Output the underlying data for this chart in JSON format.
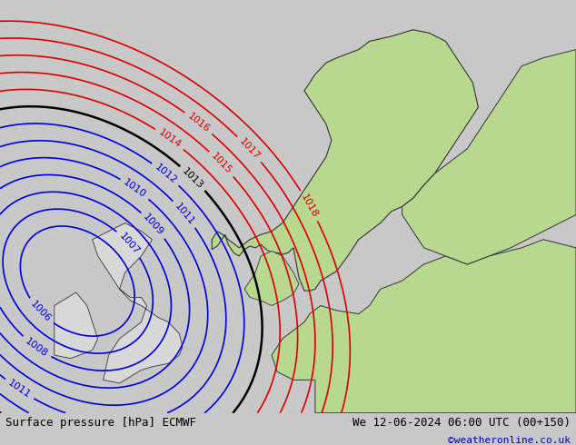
{
  "title_left": "Surface pressure [hPa] ECMWF",
  "title_right": "We 12-06-2024 06:00 UTC (00+150)",
  "credit": "©weatheronline.co.uk",
  "bg_color": "#c8c8c8",
  "land_green": "#b8d890",
  "land_grey": "#d8d8d8",
  "ocean_color": "#c8c8c8",
  "contour_blue": "#0000dd",
  "contour_red": "#dd0000",
  "contour_black": "#000000",
  "footer_bg": "#d0d0d0",
  "footer_fontsize": 9,
  "credit_color": "#0000bb",
  "credit_fontsize": 8
}
